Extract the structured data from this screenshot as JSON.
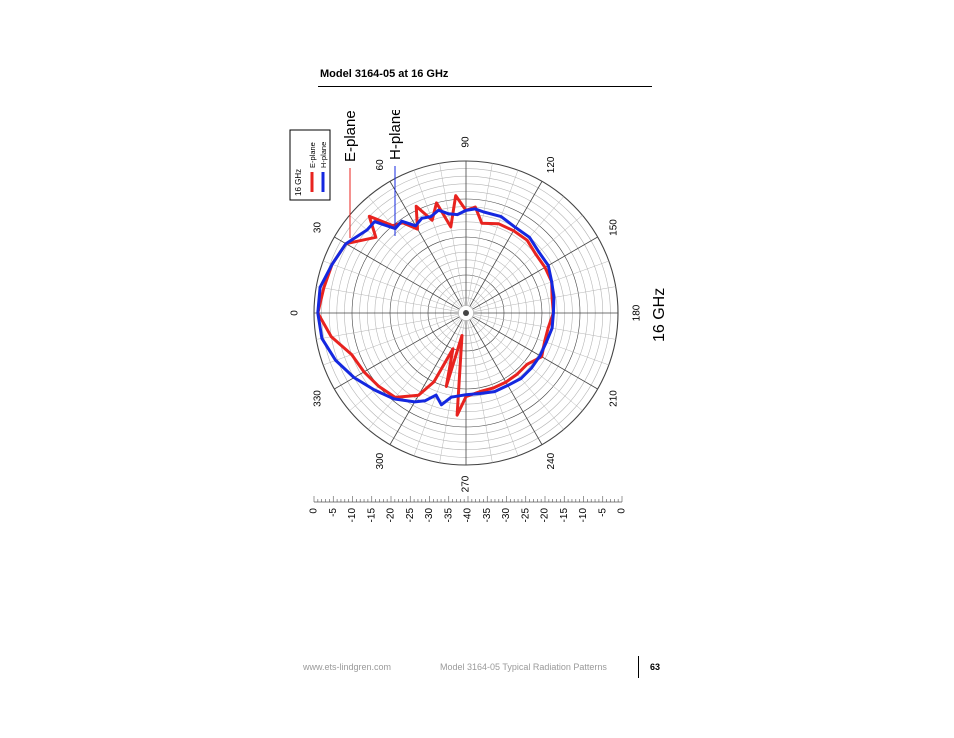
{
  "page": {
    "title": "Model 3164-05 at 16 GHz",
    "footer_url": "www.ets-lindgren.com",
    "footer_doc": "Model 3164-05 Typical Radiation Patterns",
    "page_number": "63"
  },
  "chart_data": {
    "type": "polar",
    "orientation": "rotated 90 degrees clockwise on page",
    "frequency_label": "16 GHz",
    "legend": {
      "title": "16 GHz",
      "entries": [
        "E-plane",
        "H-plane"
      ],
      "placement": "top-left"
    },
    "callouts": [
      "E-plane",
      "H-plane"
    ],
    "angle_ticks": [
      "0",
      "30",
      "60",
      "90",
      "120",
      "150",
      "180",
      "210",
      "240",
      "270",
      "300",
      "330"
    ],
    "radial_scale_labels": [
      "0",
      "-5",
      "-10",
      "-15",
      "-20",
      "-25",
      "-30",
      "-35",
      "-40",
      "-35",
      "-30",
      "-25",
      "-20",
      "-15",
      "-10",
      "-5",
      "0"
    ],
    "r_range_db": [
      -40,
      0
    ],
    "grid": true,
    "series": [
      {
        "name": "E-plane",
        "color": "#e8231f",
        "angles_deg": [
          0,
          10,
          20,
          30,
          40,
          45,
          50,
          55,
          60,
          65,
          70,
          75,
          80,
          85,
          90,
          95,
          100,
          110,
          120,
          130,
          140,
          150,
          160,
          170,
          180,
          190,
          200,
          210,
          220,
          230,
          240,
          250,
          260,
          270,
          275,
          280,
          285,
          290,
          295,
          300,
          310,
          320,
          330,
          340,
          350
        ],
        "values_db": [
          -1,
          -2,
          -2.5,
          -3.5,
          -9,
          -4,
          -10,
          -11,
          -14.5,
          -9,
          -14,
          -10,
          -17,
          -9,
          -13,
          -12,
          -16,
          -15,
          -15,
          -15,
          -16,
          -16,
          -16,
          -17,
          -17,
          -18,
          -18,
          -17,
          -19,
          -19,
          -19,
          -19,
          -19,
          -18,
          -13,
          -34,
          -20,
          -30,
          -20,
          -15,
          -11,
          -10,
          -9,
          -8,
          -4
        ]
      },
      {
        "name": "H-plane",
        "color": "#1428e0",
        "angles_deg": [
          0,
          10,
          20,
          30,
          40,
          45,
          50,
          55,
          60,
          65,
          70,
          75,
          80,
          85,
          90,
          95,
          100,
          110,
          120,
          130,
          140,
          150,
          160,
          170,
          180,
          190,
          200,
          210,
          220,
          230,
          240,
          250,
          260,
          270,
          280,
          285,
          290,
          295,
          300,
          310,
          320,
          330,
          340,
          350
        ],
        "values_db": [
          -1,
          -1,
          -2.5,
          -3.5,
          -6,
          -6,
          -11,
          -10.5,
          -13.5,
          -12.5,
          -13,
          -12,
          -13.5,
          -14,
          -13,
          -12.5,
          -13,
          -13,
          -14,
          -14,
          -15,
          -15,
          -16,
          -16.5,
          -17,
          -17,
          -17.5,
          -17.5,
          -17.5,
          -17.5,
          -18,
          -18,
          -18.5,
          -18.5,
          -17.5,
          -15,
          -17,
          -14.5,
          -13,
          -10.5,
          -8.5,
          -6,
          -3.5,
          -1.5
        ]
      }
    ]
  }
}
